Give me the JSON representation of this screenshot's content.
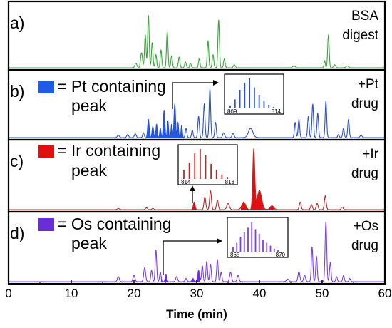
{
  "chart_data": {
    "type": "line",
    "xlabel": "Time (min)",
    "xlim": [
      0,
      60
    ],
    "x_ticks": [
      "0",
      "10",
      "20",
      "30",
      "40",
      "50",
      "60"
    ],
    "panels": [
      {
        "id": "a",
        "letter": "a)",
        "side_label": [
          "BSA",
          "digest"
        ],
        "color": "#3aa63a",
        "peaks": [
          [
            20.3,
            0.08,
            0.15
          ],
          [
            21.2,
            0.25,
            0.15
          ],
          [
            21.8,
            0.55,
            0.12
          ],
          [
            22.3,
            0.88,
            0.12
          ],
          [
            22.9,
            0.42,
            0.12
          ],
          [
            23.5,
            0.22,
            0.12
          ],
          [
            24.3,
            0.3,
            0.12
          ],
          [
            25.3,
            0.6,
            0.12
          ],
          [
            26.0,
            0.2,
            0.12
          ],
          [
            27.2,
            0.18,
            0.12
          ],
          [
            28.2,
            0.1,
            0.12
          ],
          [
            29.0,
            0.08,
            0.12
          ],
          [
            30.4,
            0.15,
            0.12
          ],
          [
            31.8,
            0.45,
            0.12
          ],
          [
            32.6,
            0.22,
            0.12
          ],
          [
            33.5,
            0.8,
            0.12
          ],
          [
            34.4,
            0.15,
            0.12
          ],
          [
            36.0,
            0.05,
            0.15
          ],
          [
            45.5,
            0.03,
            0.2
          ],
          [
            50.4,
            0.12,
            0.1
          ],
          [
            51.0,
            0.55,
            0.12
          ],
          [
            52.0,
            0.05,
            0.15
          ],
          [
            54.0,
            0.03,
            0.2
          ]
        ]
      },
      {
        "id": "b",
        "letter": "b)",
        "swatch_text": "= Pt containing",
        "swatch_text2": "peak",
        "side_label": [
          "+Pt",
          "drug"
        ],
        "color": "#2a4fd4",
        "fill_color": "#1f5ae8",
        "fill_ranges": [
          [
            22,
            28
          ]
        ],
        "inset_ticks": [
          "809",
          "814"
        ],
        "inset_bars": [
          0.1,
          0.3,
          0.62,
          0.85,
          1.0,
          0.7,
          0.45,
          0.25,
          0.12,
          0.05
        ],
        "peaks": [
          [
            17.5,
            0.04,
            0.15
          ],
          [
            19.0,
            0.05,
            0.15
          ],
          [
            20.2,
            0.06,
            0.15
          ],
          [
            21.5,
            0.08,
            0.12
          ],
          [
            22.3,
            0.3,
            0.12
          ],
          [
            23.0,
            0.18,
            0.12
          ],
          [
            23.6,
            0.22,
            0.1
          ],
          [
            24.2,
            0.15,
            0.1
          ],
          [
            24.8,
            0.45,
            0.12
          ],
          [
            25.4,
            0.28,
            0.1
          ],
          [
            26.0,
            0.22,
            0.1
          ],
          [
            26.5,
            0.55,
            0.12
          ],
          [
            27.0,
            0.25,
            0.1
          ],
          [
            27.6,
            0.2,
            0.1
          ],
          [
            28.3,
            0.15,
            0.12
          ],
          [
            29.3,
            0.12,
            0.12
          ],
          [
            30.3,
            0.35,
            0.12
          ],
          [
            31.2,
            0.55,
            0.12
          ],
          [
            32.1,
            0.8,
            0.12
          ],
          [
            33.0,
            0.25,
            0.12
          ],
          [
            34.3,
            0.08,
            0.15
          ],
          [
            35.8,
            0.07,
            0.15
          ],
          [
            38.6,
            0.15,
            0.35
          ],
          [
            45.7,
            0.25,
            0.12
          ],
          [
            46.3,
            0.3,
            0.12
          ],
          [
            47.8,
            0.35,
            0.12
          ],
          [
            48.5,
            0.55,
            0.12
          ],
          [
            49.3,
            0.4,
            0.12
          ],
          [
            50.6,
            0.6,
            0.12
          ],
          [
            52.6,
            0.05,
            0.12
          ],
          [
            53.4,
            0.15,
            0.12
          ],
          [
            54.2,
            0.3,
            0.12
          ],
          [
            56.2,
            0.04,
            0.15
          ]
        ]
      },
      {
        "id": "c",
        "letter": "c)",
        "swatch_text": "= Ir containing",
        "swatch_text2": "peak",
        "side_label": [
          "+Ir",
          "drug"
        ],
        "color": "#b82a2a",
        "fill_color": "#e01010",
        "fill_ranges": [
          [
            28.8,
            30.2
          ],
          [
            37.0,
            42.5
          ]
        ],
        "inset_ticks": [
          "814",
          "818"
        ],
        "inset_bars": [
          0.3,
          0.55,
          0.85,
          1.0,
          0.8,
          0.5,
          0.3,
          0.15,
          0.07
        ],
        "peaks": [
          [
            17.5,
            0.02,
            0.15
          ],
          [
            22.0,
            0.03,
            0.15
          ],
          [
            23.0,
            0.02,
            0.15
          ],
          [
            29.6,
            0.12,
            0.14
          ],
          [
            31.3,
            0.2,
            0.14
          ],
          [
            32.2,
            0.3,
            0.14
          ],
          [
            33.3,
            0.15,
            0.14
          ],
          [
            35.0,
            0.1,
            0.2
          ],
          [
            37.5,
            0.12,
            0.3
          ],
          [
            39.1,
            0.95,
            0.16
          ],
          [
            40.0,
            0.3,
            0.35
          ],
          [
            42.0,
            0.06,
            0.3
          ],
          [
            46.5,
            0.12,
            0.14
          ],
          [
            48.3,
            0.08,
            0.14
          ],
          [
            49.2,
            0.1,
            0.14
          ],
          [
            50.5,
            0.22,
            0.14
          ],
          [
            53.2,
            0.04,
            0.15
          ]
        ]
      },
      {
        "id": "d",
        "letter": "d)",
        "swatch_text": "= Os containing",
        "swatch_text2": "peak",
        "side_label": [
          "+Os",
          "drug"
        ],
        "color": "#7a3ee6",
        "fill_color": "#6a2ed8",
        "fill_ranges": [
          [
            24.3,
            25.9
          ],
          [
            28.7,
            30.5
          ]
        ],
        "inset_ticks": [
          "865",
          "870"
        ],
        "inset_bars": [
          0.15,
          0.3,
          0.5,
          0.65,
          0.8,
          1.0,
          0.75,
          0.6,
          0.4,
          0.3,
          0.2,
          0.1,
          0.05
        ],
        "peaks": [
          [
            17.5,
            0.08,
            0.15
          ],
          [
            20.0,
            0.1,
            0.15
          ],
          [
            21.7,
            0.22,
            0.15
          ],
          [
            22.8,
            0.18,
            0.12
          ],
          [
            23.5,
            0.5,
            0.12
          ],
          [
            24.2,
            0.15,
            0.12
          ],
          [
            25.1,
            0.12,
            0.12
          ],
          [
            26.8,
            0.08,
            0.15
          ],
          [
            28.3,
            0.05,
            0.15
          ],
          [
            29.4,
            0.05,
            0.15
          ],
          [
            30.3,
            0.18,
            0.15
          ],
          [
            30.9,
            0.25,
            0.12
          ],
          [
            31.6,
            0.32,
            0.12
          ],
          [
            32.2,
            0.28,
            0.12
          ],
          [
            33.3,
            0.35,
            0.12
          ],
          [
            33.9,
            0.15,
            0.12
          ],
          [
            35.4,
            0.15,
            0.15
          ],
          [
            36.6,
            0.1,
            0.15
          ],
          [
            44.5,
            0.04,
            0.2
          ],
          [
            46.3,
            0.16,
            0.15
          ],
          [
            47.2,
            0.1,
            0.15
          ],
          [
            48.4,
            0.55,
            0.12
          ],
          [
            49.1,
            0.4,
            0.12
          ],
          [
            50.6,
            0.95,
            0.13
          ],
          [
            51.3,
            0.3,
            0.12
          ],
          [
            52.3,
            0.08,
            0.12
          ],
          [
            53.4,
            0.1,
            0.12
          ],
          [
            54.4,
            0.05,
            0.12
          ]
        ]
      }
    ]
  }
}
